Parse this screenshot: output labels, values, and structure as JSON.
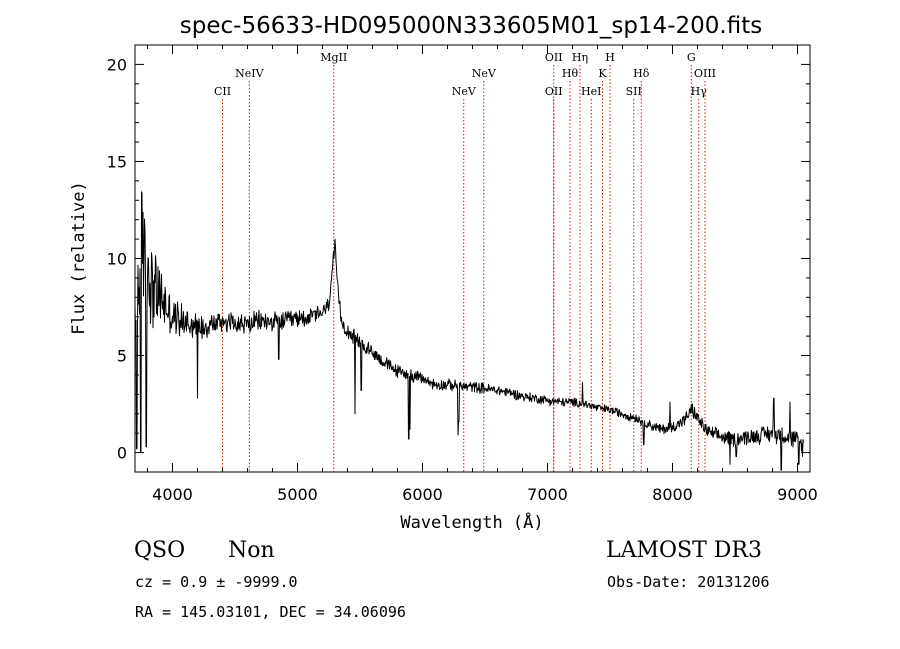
{
  "chart_data": {
    "type": "line",
    "title": "spec-56633-HD095000N333605M01_sp14-200.fits",
    "xlabel": "Wavelength (Å)",
    "ylabel": "Flux (relative)",
    "xlim": [
      3700,
      9100
    ],
    "ylim": [
      -1,
      21
    ],
    "xticks": [
      4000,
      5000,
      6000,
      7000,
      8000,
      9000
    ],
    "yticks": [
      0,
      5,
      10,
      15,
      20
    ],
    "grid": false,
    "line_color": "#000000",
    "marker_color": "#cc2200",
    "spectrum_anchors": {
      "x": [
        3700,
        3720,
        3760,
        3800,
        3850,
        3900,
        3950,
        4000,
        4100,
        4200,
        4300,
        4400,
        4500,
        4600,
        4700,
        4800,
        4900,
        5000,
        5100,
        5200,
        5250,
        5280,
        5300,
        5320,
        5350,
        5400,
        5500,
        5600,
        5700,
        5800,
        5900,
        6000,
        6100,
        6200,
        6300,
        6400,
        6500,
        6600,
        6700,
        6800,
        6900,
        7000,
        7100,
        7200,
        7300,
        7400,
        7500,
        7600,
        7700,
        7800,
        7900,
        8000,
        8100,
        8150,
        8200,
        8250,
        8300,
        8400,
        8500,
        8600,
        8700,
        8800,
        8900,
        9000,
        9050
      ],
      "y": [
        5.0,
        8.0,
        11.0,
        9.5,
        8.5,
        8.0,
        7.5,
        7.0,
        6.8,
        6.5,
        6.6,
        6.8,
        6.7,
        6.6,
        6.8,
        6.7,
        6.8,
        6.9,
        7.0,
        7.2,
        7.6,
        9.5,
        10.6,
        8.5,
        6.8,
        6.3,
        5.6,
        5.2,
        4.6,
        4.2,
        4.0,
        3.8,
        3.5,
        3.5,
        3.4,
        3.4,
        3.3,
        3.2,
        3.1,
        2.9,
        2.8,
        2.7,
        2.6,
        2.6,
        2.5,
        2.3,
        2.2,
        2.0,
        1.8,
        1.5,
        1.2,
        1.3,
        1.7,
        2.2,
        1.8,
        1.3,
        1.0,
        0.8,
        0.7,
        0.8,
        0.9,
        1.0,
        0.9,
        0.6,
        0.3
      ]
    },
    "noise_profile": {
      "x": [
        3700,
        3750,
        3800,
        3900,
        4000,
        4300,
        4700,
        5200,
        6000,
        7500,
        8000,
        8500,
        9050
      ],
      "amplitude": [
        4.0,
        4.0,
        3.2,
        2.0,
        1.1,
        0.7,
        0.6,
        0.5,
        0.35,
        0.25,
        0.35,
        0.45,
        0.6
      ]
    },
    "dips": [
      {
        "x": 3715,
        "y": 0.2
      },
      {
        "x": 3745,
        "y": 0.0
      },
      {
        "x": 3790,
        "y": 0.3
      },
      {
        "x": 4200,
        "y": 2.8
      },
      {
        "x": 4850,
        "y": 4.8
      },
      {
        "x": 5460,
        "y": 2.0
      },
      {
        "x": 5510,
        "y": 3.2
      },
      {
        "x": 5890,
        "y": 0.7
      },
      {
        "x": 5900,
        "y": 1.2
      },
      {
        "x": 6285,
        "y": 0.9
      },
      {
        "x": 6290,
        "y": 1.6
      },
      {
        "x": 7770,
        "y": 0.4
      },
      {
        "x": 8460,
        "y": -0.6
      },
      {
        "x": 8510,
        "y": -0.2
      },
      {
        "x": 8870,
        "y": -0.9
      },
      {
        "x": 9010,
        "y": -0.6
      }
    ],
    "spikes": [
      {
        "x": 7280,
        "y": 3.6
      },
      {
        "x": 7980,
        "y": 2.6
      },
      {
        "x": 8810,
        "y": 2.8
      },
      {
        "x": 8940,
        "y": 2.6
      },
      {
        "x": 8160,
        "y": 2.5
      }
    ],
    "line_markers": [
      {
        "x": 4400,
        "label": "CII",
        "row": 2
      },
      {
        "x": 4615,
        "label": "NeIV",
        "row": 1
      },
      {
        "x": 5290,
        "label": "MgII",
        "row": 0
      },
      {
        "x": 6330,
        "label": "NeV",
        "row": 2
      },
      {
        "x": 6490,
        "label": "NeV",
        "row": 1
      },
      {
        "x": 7050,
        "label": "OII",
        "row": 0
      },
      {
        "x": 7050,
        "label": "OII",
        "row": 2
      },
      {
        "x": 7180,
        "label": "Hθ",
        "row": 1
      },
      {
        "x": 7260,
        "label": "Hη",
        "row": 0
      },
      {
        "x": 7350,
        "label": "HeI",
        "row": 2
      },
      {
        "x": 7440,
        "label": "K",
        "row": 1
      },
      {
        "x": 7500,
        "label": "H",
        "row": 0
      },
      {
        "x": 7690,
        "label": "SII",
        "row": 2
      },
      {
        "x": 7750,
        "label": "Hδ",
        "row": 1
      },
      {
        "x": 8150,
        "label": "G",
        "row": 0
      },
      {
        "x": 8210,
        "label": "Hγ",
        "row": 2
      },
      {
        "x": 8260,
        "label": "OIII",
        "row": 1
      }
    ]
  },
  "info": {
    "class_label": "QSO",
    "subclass": "Non",
    "survey": "LAMOST DR3",
    "redshift": "cz = 0.9 ± -9999.0",
    "obs_date": "Obs-Date: 20131206",
    "coords": "RA = 145.03101, DEC =  34.06096"
  }
}
